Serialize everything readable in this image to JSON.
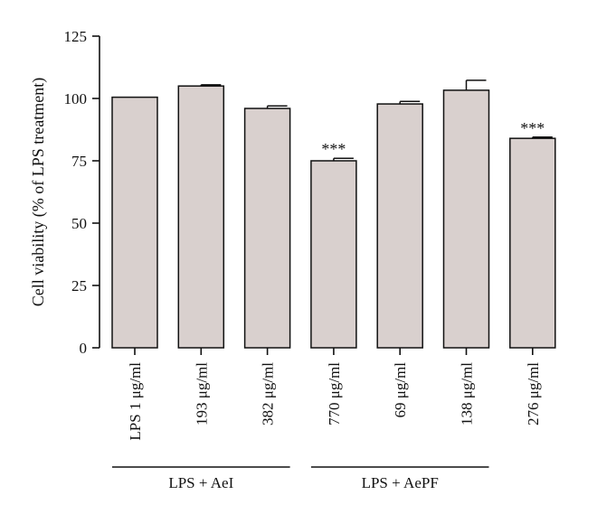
{
  "chart_data": {
    "type": "bar",
    "title": "",
    "xlabel": "",
    "ylabel": "Cell viability (% of LPS treatment)",
    "ylim": [
      0,
      125
    ],
    "yticks": [
      0,
      25,
      50,
      75,
      100,
      125
    ],
    "grid": false,
    "legend": "none",
    "bar_color": "#d9d0ce",
    "categories": [
      {
        "label": "LPS 1 μg/ml",
        "value": 100.5,
        "error": 0,
        "annotation": ""
      },
      {
        "label": "193 μg/ml",
        "value": 105.0,
        "error": 0.5,
        "annotation": ""
      },
      {
        "label": "382 μg/ml",
        "value": 96.0,
        "error": 1.0,
        "annotation": ""
      },
      {
        "label": "770 μg/ml",
        "value": 75.0,
        "error": 1.0,
        "annotation": "***"
      },
      {
        "label": "69 μg/ml",
        "value": 97.8,
        "error": 1.0,
        "annotation": ""
      },
      {
        "label": "138 μg/ml",
        "value": 103.3,
        "error": 4.0,
        "annotation": ""
      },
      {
        "label": "276 μg/ml",
        "value": 84.0,
        "error": 0.5,
        "annotation": "***"
      }
    ],
    "groups": [
      {
        "label": "LPS + AeI",
        "start": 0,
        "end": 2
      },
      {
        "label": "LPS + AePF",
        "start": 3,
        "end": 5
      }
    ]
  }
}
